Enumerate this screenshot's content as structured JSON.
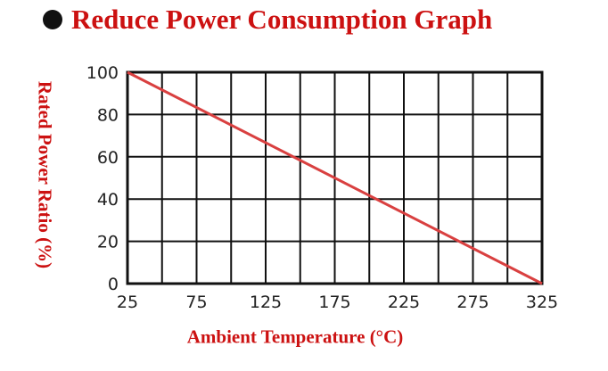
{
  "header": {
    "title": "Reduce Power Consumption Graph"
  },
  "colors": {
    "title": "#cc1111",
    "line": "#d94040",
    "grid": "#111111",
    "bullet": "#111111"
  },
  "chart_data": {
    "type": "line",
    "title": "Reduce Power Consumption Graph",
    "xlabel": "Ambient Temperature (°C)",
    "ylabel": "Rated Power Ratio (%)",
    "x_ticks": [
      25,
      75,
      125,
      175,
      225,
      275,
      325
    ],
    "y_ticks": [
      0,
      20,
      40,
      60,
      80,
      100
    ],
    "xlim": [
      25,
      325
    ],
    "ylim": [
      0,
      100
    ],
    "grid": true,
    "x_grid_step": 25,
    "y_grid_step": 20,
    "series": [
      {
        "x": [
          25,
          325
        ],
        "y": [
          100,
          0
        ]
      }
    ]
  }
}
